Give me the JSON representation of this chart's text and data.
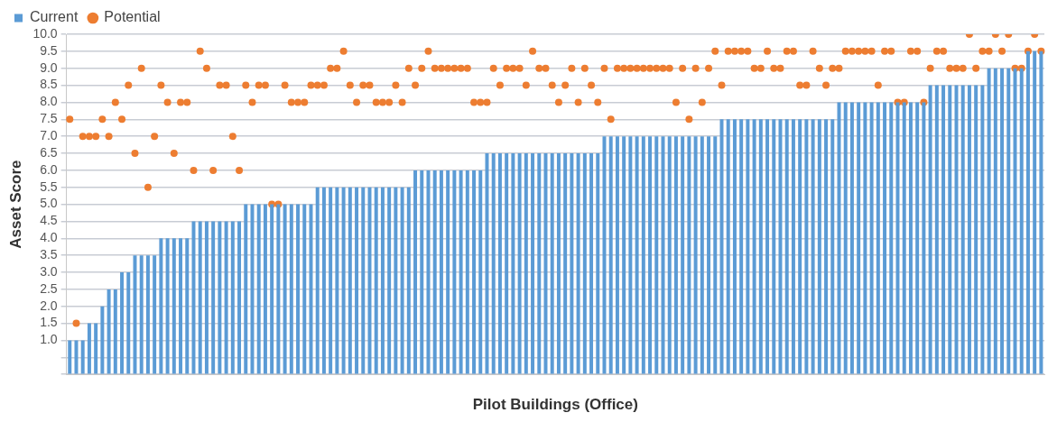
{
  "chart_data": {
    "type": "bar",
    "xlabel": "Pilot Buildings (Office)",
    "ylabel": "Asset Score",
    "legend": "top left",
    "grid": "y",
    "ylim": [
      0,
      10
    ],
    "yticks": [
      {
        "value": 0,
        "label": null
      },
      {
        "value": 0.5,
        "label": null
      },
      {
        "value": 1,
        "label": "1.0"
      },
      {
        "value": 1.5,
        "label": "1.5"
      },
      {
        "value": 2,
        "label": "2.0"
      },
      {
        "value": 2.5,
        "label": "2.5"
      },
      {
        "value": 3,
        "label": "3.0"
      },
      {
        "value": 3.5,
        "label": "3.5"
      },
      {
        "value": 4,
        "label": "4.0"
      },
      {
        "value": 4.5,
        "label": "4.5"
      },
      {
        "value": 5,
        "label": "5.0"
      },
      {
        "value": 5.5,
        "label": "5.5"
      },
      {
        "value": 6,
        "label": "6.0"
      },
      {
        "value": 6.5,
        "label": "6.5"
      },
      {
        "value": 7,
        "label": "7.0"
      },
      {
        "value": 7.5,
        "label": "7.5"
      },
      {
        "value": 8,
        "label": "8.0"
      },
      {
        "value": 8.5,
        "label": "8.5"
      },
      {
        "value": 9,
        "label": "9.0"
      },
      {
        "value": 9.5,
        "label": "9.5"
      },
      {
        "value": 10,
        "label": "10.0"
      }
    ],
    "categories": [
      null,
      null,
      null,
      null,
      null,
      null,
      null,
      null,
      null,
      null,
      null,
      null,
      null,
      null,
      null,
      null,
      null,
      null,
      null,
      null,
      null,
      null,
      null,
      null,
      null,
      null,
      null,
      null,
      null,
      null,
      null,
      null,
      null,
      null,
      null,
      null,
      null,
      null,
      null,
      null,
      null,
      null,
      null,
      null,
      null,
      null,
      null,
      null,
      null,
      null,
      null,
      null,
      null,
      null,
      null,
      null,
      null,
      null,
      null,
      null,
      null,
      null,
      null,
      null,
      null,
      null,
      null,
      null,
      null,
      null,
      null,
      null,
      null,
      null,
      null,
      null,
      null,
      null,
      null,
      null,
      null,
      null,
      null,
      null,
      null,
      null,
      null,
      null,
      null,
      null,
      null,
      null,
      null,
      null,
      null,
      null,
      null,
      null,
      null,
      null,
      null,
      null,
      null,
      null,
      null,
      null,
      null,
      null,
      null,
      null,
      null,
      null,
      null,
      null,
      null,
      null,
      null,
      null,
      null,
      null,
      null,
      null,
      null,
      null,
      null,
      null,
      null,
      null,
      null,
      null,
      null,
      null,
      null,
      null,
      null,
      null,
      null,
      null,
      null,
      null,
      null,
      null,
      null,
      null,
      null,
      null,
      null,
      null,
      null,
      null
    ],
    "series": [
      {
        "name": "Current",
        "color": "#5b9bd5",
        "values": [
          1,
          1,
          1,
          1.5,
          1.5,
          2,
          2.5,
          2.5,
          3,
          3,
          3.5,
          3.5,
          3.5,
          3.5,
          4,
          4,
          4,
          4,
          4,
          4.5,
          4.5,
          4.5,
          4.5,
          4.5,
          4.5,
          4.5,
          4.5,
          5,
          5,
          5,
          5,
          5,
          5,
          5,
          5,
          5,
          5,
          5,
          5.5,
          5.5,
          5.5,
          5.5,
          5.5,
          5.5,
          5.5,
          5.5,
          5.5,
          5.5,
          5.5,
          5.5,
          5.5,
          5.5,
          5.5,
          6,
          6,
          6,
          6,
          6,
          6,
          6,
          6,
          6,
          6,
          6,
          6.5,
          6.5,
          6.5,
          6.5,
          6.5,
          6.5,
          6.5,
          6.5,
          6.5,
          6.5,
          6.5,
          6.5,
          6.5,
          6.5,
          6.5,
          6.5,
          6.5,
          6.5,
          7,
          7,
          7,
          7,
          7,
          7,
          7,
          7,
          7,
          7,
          7,
          7,
          7,
          7,
          7,
          7,
          7,
          7,
          7.5,
          7.5,
          7.5,
          7.5,
          7.5,
          7.5,
          7.5,
          7.5,
          7.5,
          7.5,
          7.5,
          7.5,
          7.5,
          7.5,
          7.5,
          7.5,
          7.5,
          7.5,
          8,
          8,
          8,
          8,
          8,
          8,
          8,
          8,
          8,
          8,
          8,
          8,
          8,
          8,
          8.5,
          8.5,
          8.5,
          8.5,
          8.5,
          8.5,
          8.5,
          8.5,
          8.5,
          9,
          9,
          9,
          9,
          9,
          9,
          9.5,
          9.5,
          9.5
        ]
      },
      {
        "name": "Potential",
        "type": "scatter",
        "marker": "circle",
        "color": "#ed7d31",
        "values": [
          7.5,
          1.5,
          7,
          7,
          7,
          7.5,
          7,
          8,
          7.5,
          8.5,
          6.5,
          9,
          5.5,
          7,
          8.5,
          8,
          6.5,
          8,
          8,
          6,
          9.5,
          9,
          6,
          8.5,
          8.5,
          7,
          6,
          8.5,
          8,
          8.5,
          8.5,
          5,
          5,
          8.5,
          8,
          8,
          8,
          8.5,
          8.5,
          8.5,
          9,
          9,
          9.5,
          8.5,
          8,
          8.5,
          8.5,
          8,
          8,
          8,
          8.5,
          8,
          9,
          8.5,
          9,
          9.5,
          9,
          9,
          9,
          9,
          9,
          9,
          8,
          8,
          8,
          9,
          8.5,
          9,
          9,
          9,
          8.5,
          9.5,
          9,
          9,
          8.5,
          8,
          8.5,
          9,
          8,
          9,
          8.5,
          8,
          9,
          7.5,
          9,
          9,
          9,
          9,
          9,
          9,
          9,
          9,
          9,
          8,
          9,
          7.5,
          9,
          8,
          9,
          9.5,
          8.5,
          9.5,
          9.5,
          9.5,
          9.5,
          9,
          9,
          9.5,
          9,
          9,
          9.5,
          9.5,
          8.5,
          8.5,
          9.5,
          9,
          8.5,
          9,
          9,
          9.5,
          9.5,
          9.5,
          9.5,
          9.5,
          8.5,
          9.5,
          9.5,
          8,
          8,
          9.5,
          9.5,
          8,
          9,
          9.5,
          9.5,
          9,
          9,
          9,
          10,
          9,
          9.5,
          9.5,
          10,
          9.5,
          10,
          9,
          9,
          9.5,
          10,
          9.5
        ]
      }
    ]
  }
}
